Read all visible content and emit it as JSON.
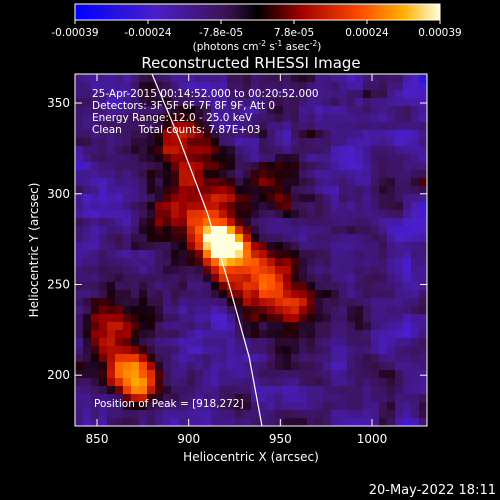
{
  "chart_data": {
    "type": "heatmap",
    "title": "Reconstructed RHESSI Image",
    "xlabel": "Heliocentric X (arcsec)",
    "ylabel": "Heliocentric Y (arcsec)",
    "xlim": [
      838,
      1030
    ],
    "ylim": [
      172,
      366
    ],
    "x_ticks": [
      "850",
      "900",
      "950",
      "1000"
    ],
    "x_tick_values": [
      850,
      900,
      950,
      1000
    ],
    "y_ticks": [
      "200",
      "250",
      "300",
      "350"
    ],
    "y_tick_values": [
      200,
      250,
      300,
      350
    ],
    "colorbar": {
      "label": "(photons cm",
      "label_sup1": "-2",
      "label_mid": " s",
      "label_sup2": "-1",
      "label_end": " asec",
      "label_sup3": "-2",
      "label_close": ")",
      "ticks": [
        "-0.00039",
        "-0.00024",
        "-7.8e-05",
        "7.8e-05",
        "0.00024",
        "0.00039"
      ],
      "range": [
        -0.00039,
        0.00039
      ]
    },
    "annotations": [
      "25-Apr-2015 00:14:52.000 to 00:20:52.000",
      "Detectors: 3F 5F 6F 7F 8F 9F, Att 0",
      "Energy Range: 12.0 - 25.0 keV",
      "Clean     Total counts: 7.87E+03"
    ],
    "peak_label": "Position of Peak = [918,272]",
    "peak": [
      918,
      272
    ],
    "limb_curve": [
      [
        880,
        366
      ],
      [
        895,
        330
      ],
      [
        910,
        290
      ],
      [
        922,
        250
      ],
      [
        933,
        210
      ],
      [
        940,
        172
      ]
    ],
    "sources": [
      {
        "x": 918,
        "y": 272,
        "amp": 1.0,
        "w": 12
      },
      {
        "x": 905,
        "y": 290,
        "amp": 0.55,
        "w": 22
      },
      {
        "x": 935,
        "y": 255,
        "amp": 0.5,
        "w": 20
      },
      {
        "x": 870,
        "y": 198,
        "amp": 0.7,
        "w": 14
      },
      {
        "x": 860,
        "y": 225,
        "amp": 0.45,
        "w": 18
      },
      {
        "x": 895,
        "y": 330,
        "amp": 0.4,
        "w": 16
      },
      {
        "x": 960,
        "y": 240,
        "amp": 0.35,
        "w": 22
      },
      {
        "x": 945,
        "y": 305,
        "amp": 0.3,
        "w": 20
      }
    ]
  },
  "footer": {
    "timestamp": "20-May-2022 18:11"
  },
  "colors": {
    "background": "#000000",
    "text": "#ffffff",
    "limb": "#ffffff"
  }
}
